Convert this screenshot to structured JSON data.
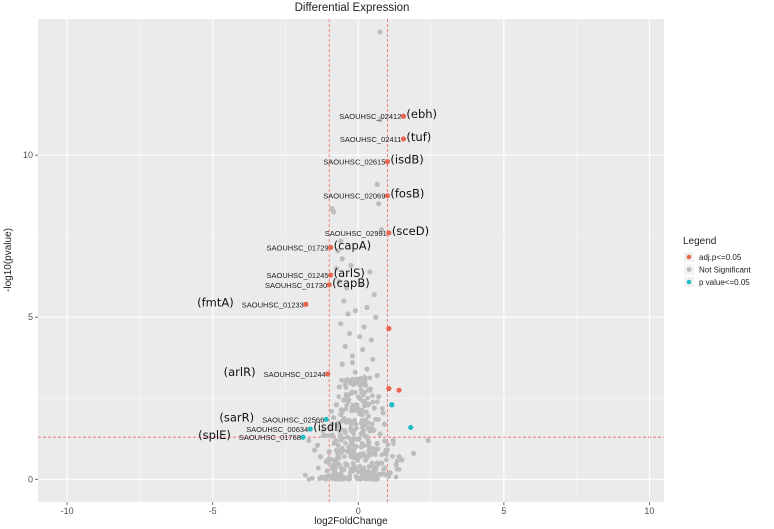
{
  "chart_data": {
    "type": "scatter",
    "title": "Differential Expression",
    "xlabel": "log2FoldChange",
    "ylabel": "-log10(pvalue)",
    "xlim": [
      -11,
      10.5
    ],
    "ylim": [
      -0.7,
      14.2
    ],
    "x_ticks": [
      -10,
      -5,
      0,
      5,
      10
    ],
    "y_ticks": [
      0,
      5,
      10
    ],
    "grid": true,
    "thresholds": {
      "log2fc": [
        -1,
        1
      ],
      "neg_log10_p": 1.3
    },
    "legend": {
      "title": "Legend",
      "position": "right",
      "entries": [
        {
          "label": "adj.p<=0.05",
          "color": "#e8654f"
        },
        {
          "label": "Not Significant",
          "color": "#bdbdbd"
        },
        {
          "label": "p value<=0.05",
          "color": "#1fbcc4"
        }
      ]
    },
    "series": [
      {
        "name": "adj.p<=0.05",
        "color": "#e8654f",
        "points": [
          {
            "x": 1.55,
            "y": 11.2
          },
          {
            "x": 1.55,
            "y": 10.5
          },
          {
            "x": 1.0,
            "y": 9.8
          },
          {
            "x": 1.0,
            "y": 8.75
          },
          {
            "x": 1.05,
            "y": 7.6
          },
          {
            "x": -0.95,
            "y": 7.15
          },
          {
            "x": -0.95,
            "y": 6.3
          },
          {
            "x": -1.0,
            "y": 6.0
          },
          {
            "x": -1.8,
            "y": 5.4
          },
          {
            "x": 1.05,
            "y": 4.65
          },
          {
            "x": -1.05,
            "y": 3.25
          },
          {
            "x": 1.05,
            "y": 2.8
          },
          {
            "x": 1.4,
            "y": 2.75
          }
        ]
      },
      {
        "name": "p value<=0.05",
        "color": "#1fbcc4",
        "points": [
          {
            "x": 1.15,
            "y": 2.3
          },
          {
            "x": 1.8,
            "y": 1.6
          },
          {
            "x": -1.1,
            "y": 1.85
          },
          {
            "x": -1.65,
            "y": 1.55
          },
          {
            "x": -1.9,
            "y": 1.3
          }
        ]
      },
      {
        "name": "Not Significant",
        "color": "#bdbdbd",
        "points": [
          {
            "x": 0.75,
            "y": 13.8
          },
          {
            "x": 0.75,
            "y": 11.1
          },
          {
            "x": 0.65,
            "y": 9.1
          },
          {
            "x": 0.7,
            "y": 8.5
          },
          {
            "x": -0.9,
            "y": 8.35
          },
          {
            "x": -0.85,
            "y": 8.25
          },
          {
            "x": 0.8,
            "y": 7.7
          },
          {
            "x": -0.6,
            "y": 7.35
          },
          {
            "x": -0.7,
            "y": 7.05
          },
          {
            "x": -0.55,
            "y": 6.8
          },
          {
            "x": -0.75,
            "y": 6.5
          },
          {
            "x": -0.65,
            "y": 6.1
          },
          {
            "x": -0.4,
            "y": 5.9
          },
          {
            "x": 0.4,
            "y": 6.4
          },
          {
            "x": 0.55,
            "y": 5.7
          },
          {
            "x": -0.5,
            "y": 5.5
          },
          {
            "x": 0.3,
            "y": 5.3
          },
          {
            "x": -0.35,
            "y": 5.1
          },
          {
            "x": 0.6,
            "y": 5.0
          },
          {
            "x": -0.6,
            "y": 4.8
          },
          {
            "x": 0.2,
            "y": 4.7
          },
          {
            "x": -0.3,
            "y": 4.5
          },
          {
            "x": 0.45,
            "y": 4.3
          },
          {
            "x": -0.45,
            "y": 4.1
          },
          {
            "x": 0.15,
            "y": 4.0
          },
          {
            "x": -0.2,
            "y": 3.8
          },
          {
            "x": 0.5,
            "y": 3.7
          },
          {
            "x": -0.55,
            "y": 3.55
          },
          {
            "x": 0.3,
            "y": 3.4
          },
          {
            "x": -0.1,
            "y": 3.3
          },
          {
            "x": 0.65,
            "y": 3.2
          },
          {
            "x": -0.4,
            "y": 3.05
          },
          {
            "x": 0.1,
            "y": 2.95
          },
          {
            "x": -0.65,
            "y": 2.85
          },
          {
            "x": 0.4,
            "y": 2.75
          },
          {
            "x": -0.25,
            "y": 2.65
          },
          {
            "x": 0.7,
            "y": 2.55
          },
          {
            "x": -0.5,
            "y": 2.45
          },
          {
            "x": 0.2,
            "y": 2.4
          },
          {
            "x": -0.75,
            "y": 2.3
          },
          {
            "x": 0.55,
            "y": 2.2
          },
          {
            "x": -0.1,
            "y": 2.15
          },
          {
            "x": 0.85,
            "y": 2.05
          },
          {
            "x": -0.6,
            "y": 2.0
          },
          {
            "x": 0.35,
            "y": 1.95
          },
          {
            "x": -0.85,
            "y": 1.9
          },
          {
            "x": 0.6,
            "y": 1.85
          },
          {
            "x": -0.3,
            "y": 1.8
          },
          {
            "x": 0.9,
            "y": 1.7
          },
          {
            "x": -0.7,
            "y": 1.65
          },
          {
            "x": 0.15,
            "y": 1.6
          },
          {
            "x": -0.95,
            "y": 1.55
          },
          {
            "x": 0.5,
            "y": 1.5
          },
          {
            "x": -0.45,
            "y": 1.45
          },
          {
            "x": 0.75,
            "y": 1.4
          },
          {
            "x": -1.2,
            "y": 1.35
          },
          {
            "x": 0.3,
            "y": 1.3
          },
          {
            "x": -0.15,
            "y": 1.25
          },
          {
            "x": 1.2,
            "y": 1.2
          },
          {
            "x": -0.8,
            "y": 1.15
          },
          {
            "x": 0.65,
            "y": 1.1
          },
          {
            "x": -1.4,
            "y": 1.05
          },
          {
            "x": 0.1,
            "y": 1.0
          },
          {
            "x": -0.55,
            "y": 0.95
          },
          {
            "x": 0.95,
            "y": 0.9
          },
          {
            "x": -1.0,
            "y": 0.85
          },
          {
            "x": 0.4,
            "y": 0.8
          },
          {
            "x": -0.25,
            "y": 0.75
          },
          {
            "x": 1.4,
            "y": 0.7
          },
          {
            "x": -0.7,
            "y": 0.65
          },
          {
            "x": 0.25,
            "y": 0.6
          },
          {
            "x": -1.1,
            "y": 0.55
          },
          {
            "x": 0.8,
            "y": 0.5
          },
          {
            "x": -0.4,
            "y": 0.45
          },
          {
            "x": 0.05,
            "y": 0.4
          },
          {
            "x": -0.9,
            "y": 0.35
          },
          {
            "x": 0.6,
            "y": 0.3
          },
          {
            "x": -0.2,
            "y": 0.25
          },
          {
            "x": 1.1,
            "y": 0.2
          },
          {
            "x": -0.6,
            "y": 0.15
          },
          {
            "x": 0.35,
            "y": 0.1
          },
          {
            "x": -0.05,
            "y": 0.05
          },
          {
            "x": 0.15,
            "y": 0.2
          },
          {
            "x": -0.3,
            "y": 0.1
          },
          {
            "x": 0.5,
            "y": 0.05
          },
          {
            "x": -0.5,
            "y": 0.3
          },
          {
            "x": 0.7,
            "y": 0.15
          },
          {
            "x": -0.75,
            "y": 0.5
          },
          {
            "x": 0.9,
            "y": 0.35
          },
          {
            "x": -1.3,
            "y": 0.7
          },
          {
            "x": 1.3,
            "y": 0.45
          },
          {
            "x": -1.5,
            "y": 0.9
          },
          {
            "x": 1.5,
            "y": 0.6
          },
          {
            "x": 2.4,
            "y": 1.2
          },
          {
            "x": 1.9,
            "y": 0.8
          },
          {
            "x": -1.7,
            "y": 1.2
          },
          {
            "x": 0.2,
            "y": 1.7
          },
          {
            "x": -0.05,
            "y": 2.3
          },
          {
            "x": 0.25,
            "y": 2.9
          },
          {
            "x": -0.2,
            "y": 3.6
          },
          {
            "x": 0.05,
            "y": 4.4
          },
          {
            "x": -0.1,
            "y": 5.2
          },
          {
            "x": 0.1,
            "y": 6.0
          },
          {
            "x": -0.25,
            "y": 6.6
          }
        ]
      }
    ],
    "annotations": [
      {
        "gene": "SAOUHSC_02412",
        "name": "(ebh)",
        "x": 1.55,
        "y": 11.2
      },
      {
        "gene": "SAOUHSC_02411",
        "name": "(tuf)",
        "x": 1.55,
        "y": 10.5
      },
      {
        "gene": "SAOUHSC_02615",
        "name": "(isdB)",
        "x": 1.0,
        "y": 9.8
      },
      {
        "gene": "SAOUHSC_02069",
        "name": "(fosB)",
        "x": 1.0,
        "y": 8.75
      },
      {
        "gene": "SAOUHSC_02991",
        "name": "(sceD)",
        "x": 1.05,
        "y": 7.6
      },
      {
        "gene": "SAOUHSC_01729",
        "name": "(capA)",
        "x": -0.95,
        "y": 7.15
      },
      {
        "gene": "SAOUHSC_01245",
        "name": "(arlS)",
        "x": -0.95,
        "y": 6.3
      },
      {
        "gene": "SAOUHSC_01730",
        "name": "(capB)",
        "x": -1.0,
        "y": 6.0
      },
      {
        "gene": "SAOUHSC_01233",
        "name": "(fmtA)",
        "x": -1.8,
        "y": 5.4
      },
      {
        "gene": "SAOUHSC_01244",
        "name": "(arlR)",
        "x": -1.05,
        "y": 3.25
      },
      {
        "gene": "SAOUHSC_02566",
        "name": "(sarR)",
        "x": -1.1,
        "y": 1.85
      },
      {
        "gene": "SAOUHSC_00634",
        "name": "(isdI)",
        "x": -1.65,
        "y": 1.55
      },
      {
        "gene": "SAOUHSC_01768",
        "name": "(splE)",
        "x": -1.9,
        "y": 1.3
      }
    ]
  }
}
